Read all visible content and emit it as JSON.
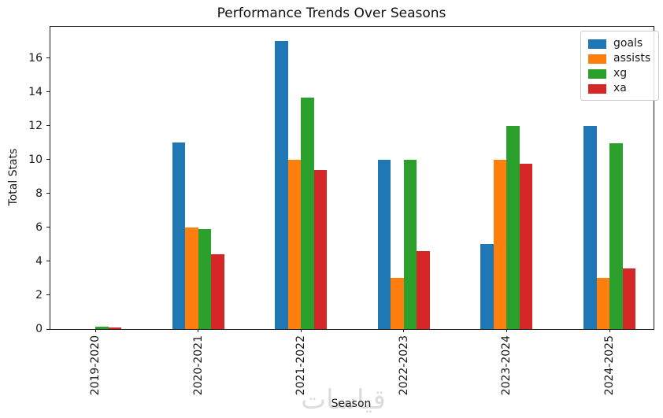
{
  "watermark": "قياسات",
  "chart_data": {
    "type": "bar",
    "title": "Performance Trends Over Seasons",
    "xlabel": "Season",
    "ylabel": "Total Stats",
    "categories": [
      "2019-2020",
      "2020-2021",
      "2021-2022",
      "2022-2023",
      "2023-2024",
      "2024-2025"
    ],
    "series": [
      {
        "name": "goals",
        "color": "#1f77b4",
        "values": [
          0,
          11,
          17,
          10,
          5,
          12
        ]
      },
      {
        "name": "assists",
        "color": "#ff7f0e",
        "values": [
          0,
          6,
          10,
          3,
          10,
          3
        ]
      },
      {
        "name": "xg",
        "color": "#2ca02c",
        "values": [
          0.15,
          5.9,
          13.65,
          10,
          12,
          10.95
        ]
      },
      {
        "name": "xa",
        "color": "#d62728",
        "values": [
          0.1,
          4.4,
          9.4,
          4.6,
          9.75,
          3.6
        ]
      }
    ],
    "ylim": [
      0,
      17.85
    ],
    "yticks": [
      0,
      2,
      4,
      6,
      8,
      10,
      12,
      14,
      16
    ],
    "grid": false,
    "legend_position": "upper right",
    "x_tick_rotation": 90
  }
}
